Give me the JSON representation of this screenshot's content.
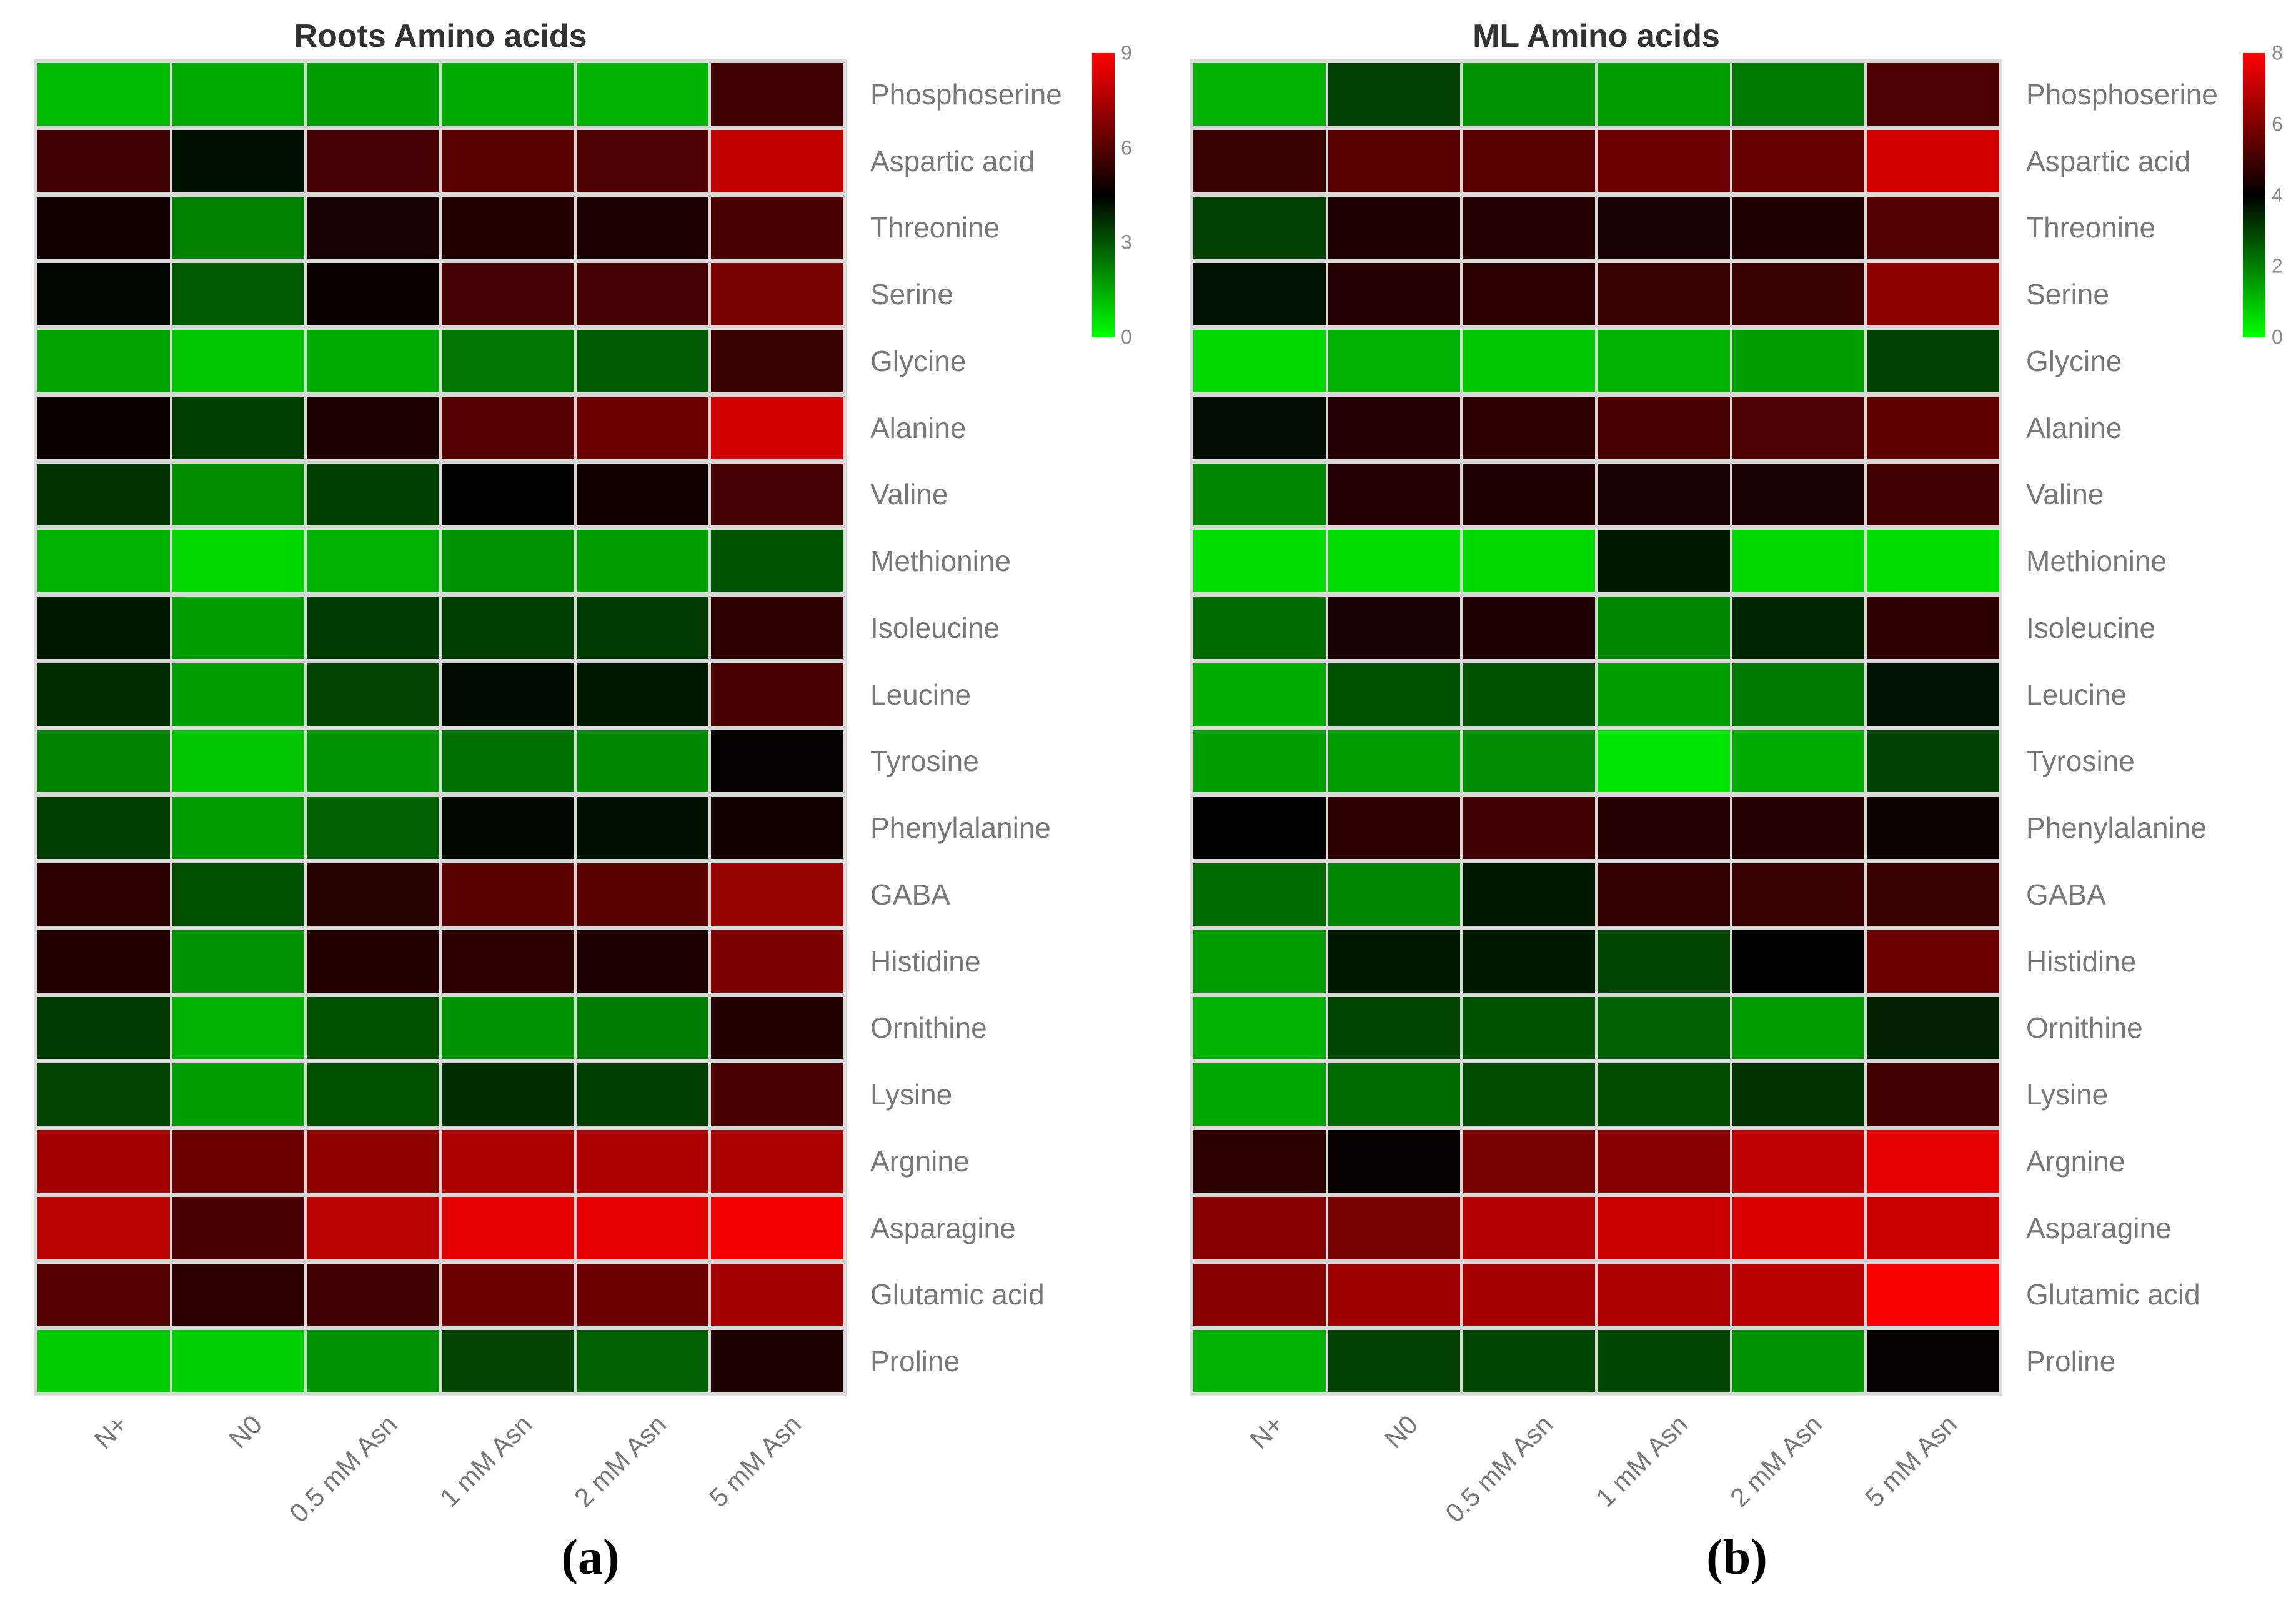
{
  "chart_data": [
    {
      "type": "heatmap",
      "title": "Roots Amino acids",
      "caption": "(a)",
      "legend_position": "right",
      "colormap": {
        "low": "#00ff00",
        "mid": "#000000",
        "high": "#ff0000"
      },
      "grid_line_color": "#d9d9d9",
      "vmin": 0,
      "vmax": 9,
      "colorbar_ticks": [
        9,
        6,
        3,
        0
      ],
      "columns": [
        "N+",
        "N0",
        "0.5 mM Asn",
        "1 mM Asn",
        "2 mM Asn",
        "5 mM Asn"
      ],
      "rows": [
        "Phosphoserine",
        "Aspartic acid",
        "Threonine",
        "Serine",
        "Glycine",
        "Alanine",
        "Valine",
        "Methionine",
        "Isoleucine",
        "Leucine",
        "Tyrosine",
        "Phenylalanine",
        "GABA",
        "Histidine",
        "Ornithine",
        "Lysine",
        "Argnine",
        "Asparagine",
        "Glutamic acid",
        "Proline"
      ],
      "values": [
        [
          1.2,
          1.5,
          1.7,
          1.5,
          1.3,
          5.6
        ],
        [
          5.6,
          4.2,
          5.7,
          6.1,
          5.9,
          7.9
        ],
        [
          4.8,
          2.2,
          4.9,
          5.1,
          5.0,
          5.8
        ],
        [
          4.4,
          2.9,
          4.7,
          5.7,
          5.7,
          6.6
        ],
        [
          1.6,
          1.0,
          1.5,
          2.4,
          2.9,
          5.5
        ],
        [
          4.7,
          3.4,
          5.0,
          6.0,
          6.4,
          8.2
        ],
        [
          3.6,
          2.0,
          3.4,
          4.5,
          4.8,
          5.7
        ],
        [
          1.4,
          0.7,
          1.4,
          1.9,
          1.7,
          3.0
        ],
        [
          4.1,
          1.7,
          3.5,
          3.4,
          3.5,
          5.3
        ],
        [
          3.7,
          1.7,
          3.3,
          4.3,
          4.1,
          5.8
        ],
        [
          2.2,
          1.0,
          1.9,
          2.5,
          2.1,
          4.6
        ],
        [
          3.4,
          1.8,
          2.8,
          4.4,
          4.2,
          4.8
        ],
        [
          5.3,
          3.1,
          5.2,
          6.1,
          6.1,
          7.2
        ],
        [
          5.1,
          1.9,
          5.1,
          5.3,
          5.0,
          6.7
        ],
        [
          3.5,
          1.3,
          3.1,
          1.9,
          2.3,
          5.1
        ],
        [
          3.3,
          1.7,
          3.1,
          3.7,
          3.4,
          5.8
        ],
        [
          7.4,
          6.4,
          7.0,
          7.5,
          7.5,
          7.5
        ],
        [
          7.8,
          5.8,
          7.8,
          8.5,
          8.5,
          8.8
        ],
        [
          6.0,
          5.3,
          5.6,
          6.4,
          6.4,
          7.4
        ],
        [
          0.9,
          0.85,
          1.9,
          3.3,
          2.8,
          5.0
        ]
      ]
    },
    {
      "type": "heatmap",
      "title": "ML Amino acids",
      "caption": "(b)",
      "legend_position": "right",
      "colormap": {
        "low": "#00ff00",
        "mid": "#000000",
        "high": "#ff0000"
      },
      "grid_line_color": "#d9d9d9",
      "vmin": 0,
      "vmax": 8,
      "colorbar_ticks": [
        8,
        6,
        4,
        2,
        0
      ],
      "columns": [
        "N+",
        "N0",
        "0.5 mM Asn",
        "1 mM Asn",
        "2 mM Asn",
        "5 mM Asn"
      ],
      "rows": [
        "Phosphoserine",
        "Aspartic acid",
        "Threonine",
        "Serine",
        "Glycine",
        "Alanine",
        "Valine",
        "Methionine",
        "Isoleucine",
        "Leucine",
        "Tyrosine",
        "Phenylalanine",
        "GABA",
        "Histidine",
        "Ornithine",
        "Lysine",
        "Argnine",
        "Asparagine",
        "Glutamic acid",
        "Proline"
      ],
      "values": [
        [
          1.2,
          3.0,
          1.7,
          1.5,
          2.1,
          5.2
        ],
        [
          4.9,
          5.4,
          5.4,
          5.7,
          5.6,
          7.3
        ],
        [
          3.0,
          4.5,
          4.6,
          4.4,
          4.5,
          5.3
        ],
        [
          3.7,
          4.6,
          4.7,
          4.9,
          4.9,
          6.2
        ],
        [
          0.6,
          1.2,
          0.9,
          1.2,
          1.5,
          3.0
        ],
        [
          3.8,
          4.6,
          4.7,
          5.1,
          5.2,
          5.5
        ],
        [
          1.9,
          4.6,
          4.5,
          4.4,
          4.4,
          5.0
        ],
        [
          0.5,
          0.55,
          0.6,
          3.6,
          0.6,
          0.5
        ],
        [
          2.3,
          4.4,
          4.5,
          1.9,
          3.4,
          4.7
        ],
        [
          1.3,
          2.7,
          2.7,
          1.5,
          2.1,
          3.7
        ],
        [
          1.5,
          1.6,
          1.8,
          0.4,
          1.3,
          3.0
        ],
        [
          4.0,
          4.7,
          5.0,
          4.6,
          4.6,
          4.2
        ],
        [
          2.3,
          1.9,
          3.6,
          4.8,
          4.9,
          4.9
        ],
        [
          1.6,
          3.6,
          3.6,
          2.9,
          4.0,
          5.7
        ],
        [
          1.2,
          2.9,
          2.7,
          2.5,
          1.6,
          3.5
        ],
        [
          1.4,
          2.3,
          2.8,
          2.8,
          3.2,
          5.0
        ],
        [
          4.7,
          4.1,
          5.9,
          6.1,
          7.0,
          7.6
        ],
        [
          6.1,
          5.9,
          6.8,
          7.2,
          7.4,
          7.2
        ],
        [
          6.1,
          6.5,
          6.6,
          6.7,
          6.9,
          7.9
        ],
        [
          1.2,
          3.0,
          2.9,
          2.9,
          1.7,
          4.1
        ]
      ]
    }
  ]
}
